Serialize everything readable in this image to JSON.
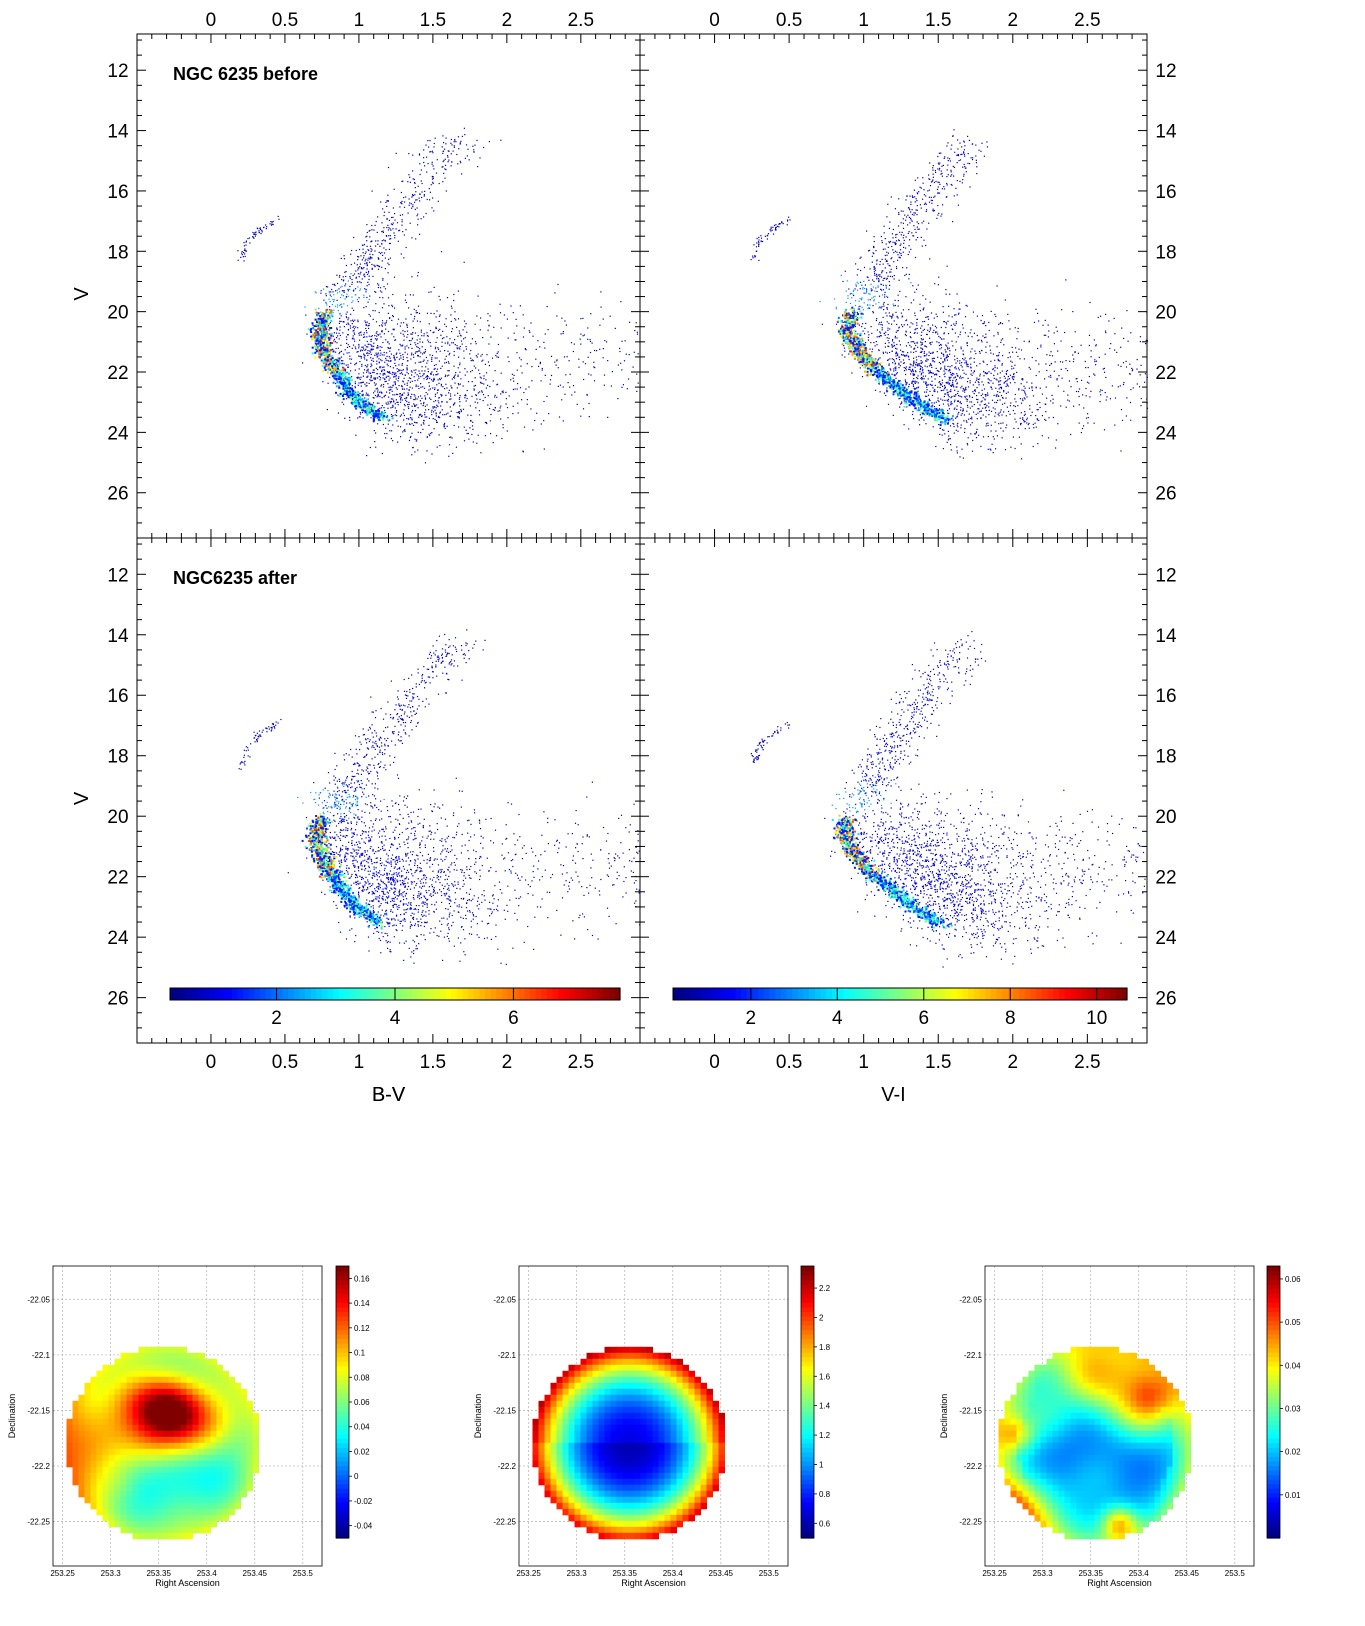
{
  "chart_data": [
    {
      "type": "scatter",
      "title": "NGC 6235 before",
      "xlabel": "B-V",
      "ylabel": "V",
      "x_ticks": [
        "0",
        "0.5",
        "1",
        "1.5",
        "2",
        "2.5"
      ],
      "y_ticks": [
        "12",
        "14",
        "16",
        "18",
        "20",
        "22",
        "24",
        "26"
      ],
      "xlim": [
        -0.5,
        2.9
      ],
      "ylim": [
        27.5,
        10.8
      ],
      "y_inverted": true,
      "density_colored": true,
      "sequences": [
        {
          "name_hint": "main sequence ridge",
          "points": [
            [
              0.77,
              20.0
            ],
            [
              0.73,
              20.6
            ],
            [
              0.75,
              21.2
            ],
            [
              0.82,
              21.8
            ],
            [
              0.9,
              22.4
            ],
            [
              1.0,
              23.0
            ],
            [
              1.15,
              23.5
            ]
          ]
        },
        {
          "name_hint": "giant branch",
          "points": [
            [
              0.8,
              19.8
            ],
            [
              0.95,
              19.2
            ],
            [
              1.05,
              18.4
            ],
            [
              1.15,
              17.5
            ],
            [
              1.3,
              16.5
            ],
            [
              1.5,
              15.2
            ],
            [
              1.7,
              14.2
            ]
          ]
        },
        {
          "name_hint": "horizontal branch",
          "points": [
            [
              0.2,
              18.3
            ],
            [
              0.25,
              17.6
            ],
            [
              0.35,
              17.2
            ],
            [
              0.45,
              16.9
            ]
          ]
        }
      ]
    },
    {
      "type": "scatter",
      "title": "",
      "xlabel": "",
      "ylabel": "",
      "x_ticks": [
        "0",
        "0.5",
        "1",
        "1.5",
        "2",
        "2.5"
      ],
      "y_ticks": [
        "12",
        "14",
        "16",
        "18",
        "20",
        "22",
        "24",
        "26"
      ],
      "xlim": [
        -0.5,
        2.9
      ],
      "ylim": [
        27.5,
        10.8
      ],
      "y_inverted": true,
      "density_colored": true,
      "sequences": [
        {
          "name_hint": "main sequence ridge",
          "points": [
            [
              0.9,
              20.0
            ],
            [
              0.88,
              20.6
            ],
            [
              0.95,
              21.2
            ],
            [
              1.05,
              21.8
            ],
            [
              1.2,
              22.4
            ],
            [
              1.35,
              23.0
            ],
            [
              1.55,
              23.6
            ]
          ]
        },
        {
          "name_hint": "giant branch",
          "points": [
            [
              0.95,
              19.8
            ],
            [
              1.05,
              19.1
            ],
            [
              1.15,
              18.3
            ],
            [
              1.25,
              17.4
            ],
            [
              1.4,
              16.4
            ],
            [
              1.55,
              15.3
            ],
            [
              1.7,
              14.3
            ]
          ]
        },
        {
          "name_hint": "horizontal branch",
          "points": [
            [
              0.25,
              18.3
            ],
            [
              0.3,
              17.6
            ],
            [
              0.4,
              17.2
            ],
            [
              0.5,
              16.9
            ]
          ]
        }
      ]
    },
    {
      "type": "scatter",
      "title": "NGC6235 after",
      "xlabel": "B-V",
      "ylabel": "V",
      "x_ticks": [
        "0",
        "0.5",
        "1",
        "1.5",
        "2",
        "2.5"
      ],
      "y_ticks": [
        "12",
        "14",
        "16",
        "18",
        "20",
        "22",
        "24",
        "26"
      ],
      "xlim": [
        -0.5,
        2.9
      ],
      "ylim": [
        27.5,
        10.8
      ],
      "y_inverted": true,
      "density_colored": true,
      "colorbar": {
        "ticks": [
          "2",
          "4",
          "6"
        ],
        "range": [
          0.2,
          7.8
        ]
      },
      "sequences": [
        {
          "name_hint": "main sequence ridge",
          "points": [
            [
              0.75,
              20.0
            ],
            [
              0.7,
              20.6
            ],
            [
              0.73,
              21.2
            ],
            [
              0.8,
              21.8
            ],
            [
              0.88,
              22.4
            ],
            [
              0.98,
              23.0
            ],
            [
              1.12,
              23.5
            ]
          ]
        },
        {
          "name_hint": "giant branch",
          "points": [
            [
              0.78,
              19.8
            ],
            [
              0.93,
              19.2
            ],
            [
              1.03,
              18.4
            ],
            [
              1.13,
              17.5
            ],
            [
              1.28,
              16.5
            ],
            [
              1.48,
              15.2
            ],
            [
              1.68,
              14.2
            ]
          ]
        },
        {
          "name_hint": "horizontal branch",
          "points": [
            [
              0.2,
              18.3
            ],
            [
              0.25,
              17.6
            ],
            [
              0.35,
              17.2
            ],
            [
              0.45,
              16.9
            ]
          ]
        }
      ]
    },
    {
      "type": "scatter",
      "title": "",
      "xlabel": "V-I",
      "ylabel": "",
      "x_ticks": [
        "0",
        "0.5",
        "1",
        "1.5",
        "2",
        "2.5"
      ],
      "y_ticks": [
        "12",
        "14",
        "16",
        "18",
        "20",
        "22",
        "24",
        "26"
      ],
      "xlim": [
        -0.5,
        2.9
      ],
      "ylim": [
        27.5,
        10.8
      ],
      "y_inverted": true,
      "density_colored": true,
      "colorbar": {
        "ticks": [
          "2",
          "4",
          "6",
          "8",
          "10"
        ],
        "range": [
          0.2,
          10.7
        ]
      },
      "sequences": [
        {
          "name_hint": "main sequence ridge",
          "points": [
            [
              0.88,
              20.0
            ],
            [
              0.86,
              20.6
            ],
            [
              0.93,
              21.2
            ],
            [
              1.03,
              21.8
            ],
            [
              1.18,
              22.4
            ],
            [
              1.33,
              23.0
            ],
            [
              1.53,
              23.6
            ]
          ]
        },
        {
          "name_hint": "giant branch",
          "points": [
            [
              0.93,
              19.8
            ],
            [
              1.03,
              19.1
            ],
            [
              1.13,
              18.3
            ],
            [
              1.23,
              17.4
            ],
            [
              1.38,
              16.4
            ],
            [
              1.53,
              15.3
            ],
            [
              1.68,
              14.3
            ]
          ]
        },
        {
          "name_hint": "horizontal branch",
          "points": [
            [
              0.25,
              18.3
            ],
            [
              0.3,
              17.6
            ],
            [
              0.4,
              17.2
            ],
            [
              0.5,
              16.9
            ]
          ]
        }
      ]
    },
    {
      "type": "heatmap",
      "xlabel": "Right Ascension",
      "ylabel": "Declination",
      "x_ticks": [
        "253.25",
        "253.3",
        "253.35",
        "253.4",
        "253.45",
        "253.5"
      ],
      "y_ticks": [
        "-22.05",
        "-22.1",
        "-22.15",
        "-22.2",
        "-22.25"
      ],
      "colorbar": {
        "ticks": [
          "-0.04",
          "-0.02",
          "0",
          "0.02",
          "0.04",
          "0.06",
          "0.08",
          "0.1",
          "0.12",
          "0.14",
          "0.16"
        ],
        "range": [
          -0.05,
          0.17
        ]
      },
      "pattern": "patchy, low values in center, higher near rim"
    },
    {
      "type": "heatmap",
      "xlabel": "Right Ascension",
      "ylabel": "Declination",
      "x_ticks": [
        "253.25",
        "253.3",
        "253.35",
        "253.4",
        "253.45",
        "253.5"
      ],
      "y_ticks": [
        "-22.05",
        "-22.1",
        "-22.15",
        "-22.2",
        "-22.25"
      ],
      "colorbar": {
        "ticks": [
          "0.6",
          "0.8",
          "1",
          "1.2",
          "1.4",
          "1.6",
          "1.8",
          "2",
          "2.2"
        ],
        "range": [
          0.5,
          2.35
        ]
      },
      "pattern": "radial, minimum at center rising to the rim"
    },
    {
      "type": "heatmap",
      "xlabel": "Right Ascension",
      "ylabel": "Declination",
      "x_ticks": [
        "253.25",
        "253.3",
        "253.35",
        "253.4",
        "253.45",
        "253.5"
      ],
      "y_ticks": [
        "-22.05",
        "-22.1",
        "-22.15",
        "-22.2",
        "-22.25"
      ],
      "colorbar": {
        "ticks": [
          "0.01",
          "0.02",
          "0.03",
          "0.04",
          "0.05",
          "0.06"
        ],
        "range": [
          0.0,
          0.063
        ]
      },
      "pattern": "low interior, high spots near left and right rim"
    }
  ]
}
